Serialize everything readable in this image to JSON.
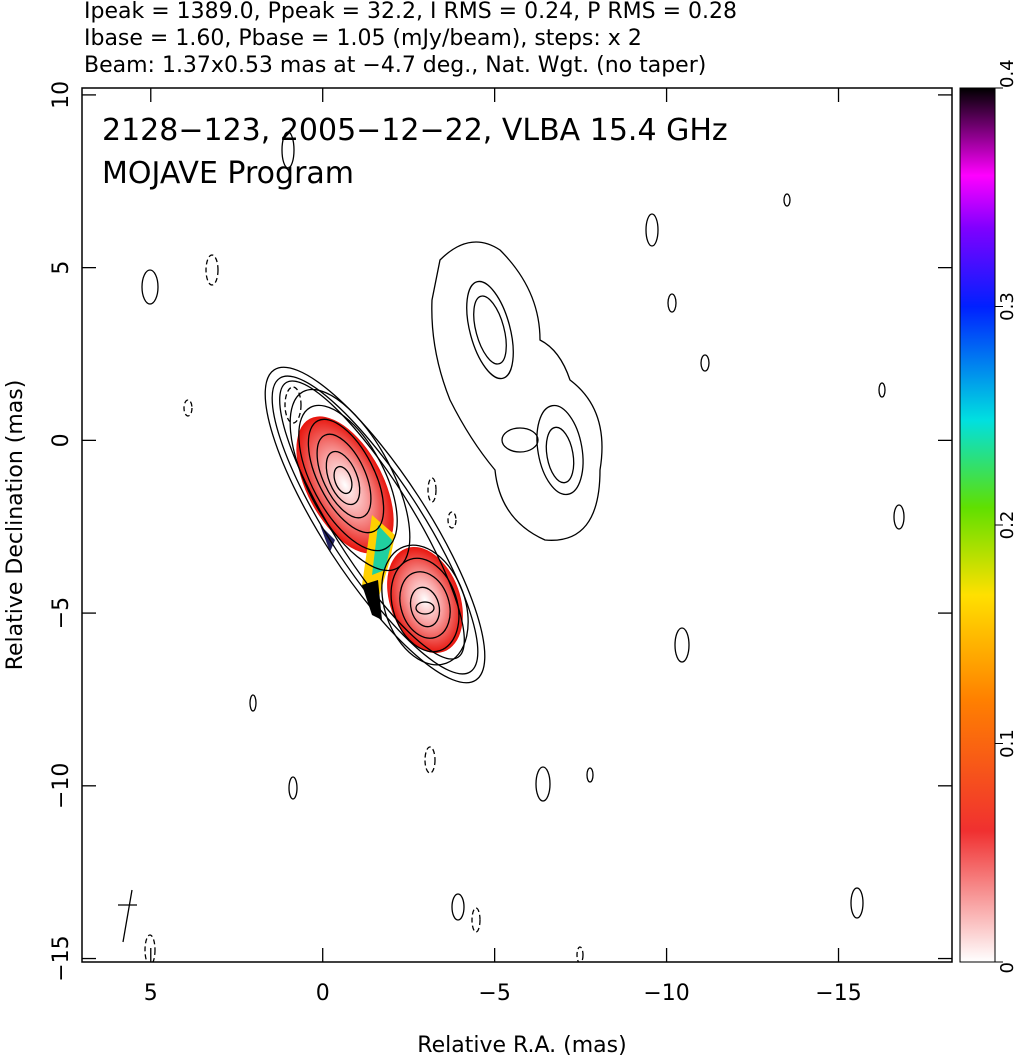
{
  "chart_data": {
    "type": "contour",
    "header": [
      "Ipeak = 1389.0, Ppeak = 32.2, I RMS = 0.24, P RMS = 0.28",
      "Ibase = 1.60, Pbase = 1.05 (mJy/beam), steps: x 2",
      "Beam: 1.37x0.53 mas at −4.7 deg., Nat. Wgt. (no taper)"
    ],
    "annotations": [
      "2128−123, 2005−12−22, VLBA 15.4 GHz",
      "MOJAVE Program"
    ],
    "x_label": "Relative R.A. (mas)",
    "y_label": "Relative Declination (mas)",
    "xlim": [
      7,
      -18.3
    ],
    "ylim": [
      -15.1,
      10.2
    ],
    "xticks": [
      5,
      0,
      {
        "value": -5,
        "label": "−5"
      },
      {
        "value": -10,
        "label": "−10"
      },
      {
        "value": -15,
        "label": "−15"
      }
    ],
    "yticks": [
      {
        "value": -15,
        "label": "−15"
      },
      {
        "value": -10,
        "label": "−10"
      },
      {
        "value": -5,
        "label": "−5"
      },
      0,
      5,
      10
    ],
    "colorbar": {
      "lim": [
        0,
        0.4
      ],
      "ticks": [
        0,
        0.1,
        0.2,
        0.3,
        0.4
      ]
    }
  }
}
